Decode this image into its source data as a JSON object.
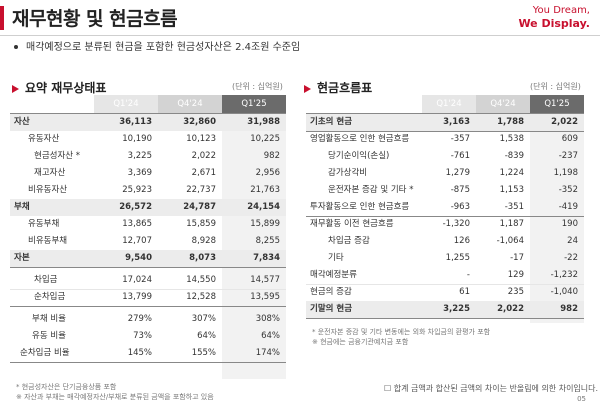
{
  "header": {
    "title": "재무현황 및 현금흐름",
    "logo_line1": "You Dream,",
    "logo_line2": "We Display."
  },
  "summary": "매각예정으로 분류된 현금을 포함한 현금성자산은 2.4조원 수준임",
  "balance": {
    "title": "요약 재무상태표",
    "unit": "(단위 : 십억원)",
    "columns": [
      "Q1'24",
      "Q4'24",
      "Q1'25"
    ],
    "rows": [
      {
        "label": "자산",
        "values": [
          "36,113",
          "32,860",
          "31,988"
        ]
      },
      {
        "label": "유동자산",
        "values": [
          "10,190",
          "10,123",
          "10,225"
        ]
      },
      {
        "label": "현금성자산 *",
        "values": [
          "3,225",
          "2,022",
          "982"
        ]
      },
      {
        "label": "재고자산",
        "values": [
          "3,369",
          "2,671",
          "2,956"
        ]
      },
      {
        "label": "비유동자산",
        "values": [
          "25,923",
          "22,737",
          "21,763"
        ]
      },
      {
        "label": "부채",
        "values": [
          "26,572",
          "24,787",
          "24,154"
        ]
      },
      {
        "label": "유동부채",
        "values": [
          "13,865",
          "15,859",
          "15,899"
        ]
      },
      {
        "label": "비유동부채",
        "values": [
          "12,707",
          "8,928",
          "8,255"
        ]
      },
      {
        "label": "자본",
        "values": [
          "9,540",
          "8,073",
          "7,834"
        ]
      },
      {
        "label": "차입금",
        "values": [
          "17,024",
          "14,550",
          "14,577"
        ]
      },
      {
        "label": "순차입금",
        "values": [
          "13,799",
          "12,528",
          "13,595"
        ]
      },
      {
        "label": "부채 비율",
        "values": [
          "279%",
          "307%",
          "308%"
        ]
      },
      {
        "label": "유동 비율",
        "values": [
          "73%",
          "64%",
          "64%"
        ]
      },
      {
        "label": "순차입금 비율",
        "values": [
          "145%",
          "155%",
          "174%"
        ]
      }
    ],
    "notes": [
      "* 현금성자산은 단기금융상품 포함",
      "※ 자산과 부채는 매각예정자산/부채로 분류된 금액을 포함하고 있음"
    ]
  },
  "cashflow": {
    "title": "현금흐름표",
    "unit": "(단위 : 십억원)",
    "columns": [
      "Q1'24",
      "Q4'24",
      "Q1'25"
    ],
    "rows": [
      {
        "label": "기초의 현금",
        "values": [
          "3,163",
          "1,788",
          "2,022"
        ]
      },
      {
        "label": "영업활동으로 인한 현금흐름",
        "values": [
          "-357",
          "1,538",
          "609"
        ]
      },
      {
        "label": "당기순이익(손실)",
        "values": [
          "-761",
          "-839",
          "-237"
        ]
      },
      {
        "label": "감가상각비",
        "values": [
          "1,279",
          "1,224",
          "1,198"
        ]
      },
      {
        "label": "운전자본 증감 및 기타 *",
        "values": [
          "-875",
          "1,153",
          "-352"
        ]
      },
      {
        "label": "투자활동으로 인한 현금흐름",
        "values": [
          "-963",
          "-351",
          "-419"
        ]
      },
      {
        "label": "재무활동 이전 현금흐름",
        "values": [
          "-1,320",
          "1,187",
          "190"
        ]
      },
      {
        "label": "차입금 증감",
        "values": [
          "126",
          "-1,064",
          "24"
        ]
      },
      {
        "label": "기타",
        "values": [
          "1,255",
          "-17",
          "-22"
        ]
      },
      {
        "label": "매각예정분류",
        "values": [
          "-",
          "129",
          "-1,232"
        ]
      },
      {
        "label": "현금의 증감",
        "values": [
          "61",
          "235",
          "-1,040"
        ]
      },
      {
        "label": "기말의 현금",
        "values": [
          "3,225",
          "2,022",
          "982"
        ]
      }
    ],
    "notes": [
      "* 운전자본 증감 및 기타 변동에는 외화 차입금의 환평가 포함",
      "※ 현금에는 금융기관예치금 포함"
    ]
  },
  "footer": {
    "note": "☐ 합계 금액과 합산된 금액의 차이는 반올림에 의한 차이입니다.",
    "page": "05"
  }
}
